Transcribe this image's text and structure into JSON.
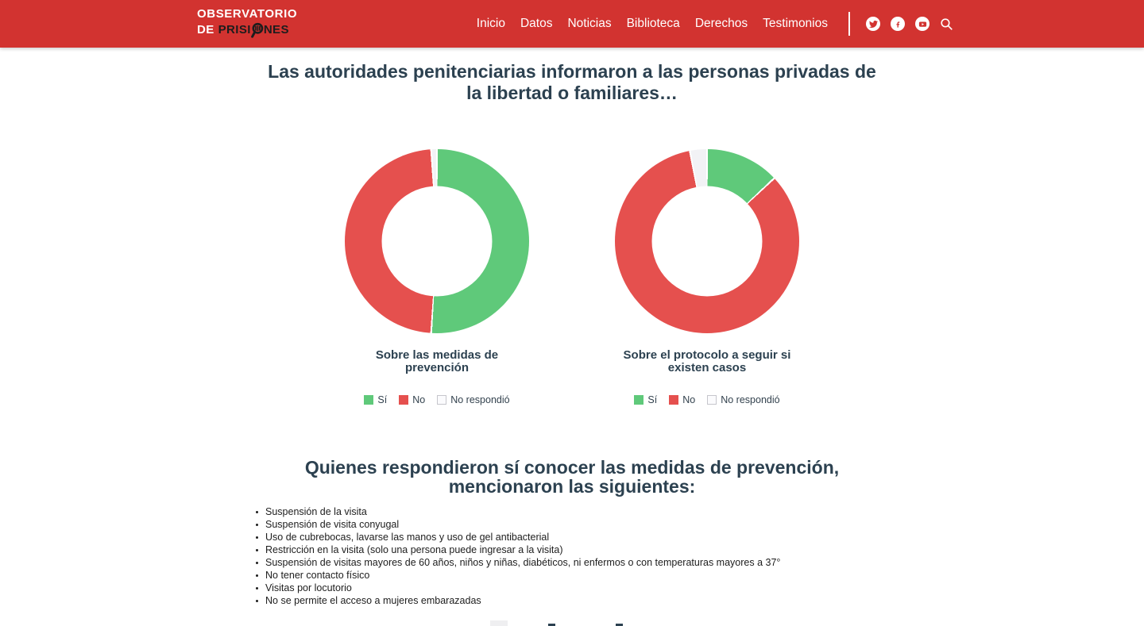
{
  "header": {
    "logo": {
      "line1": "OBSERVATORIO",
      "line2_white": "DE",
      "line2_dark_pre": "PRISI",
      "line2_dark_post": "NES",
      "magnifier_icon": "magnifier-with-prison-bars"
    },
    "nav": [
      "Inicio",
      "Datos",
      "Noticias",
      "Biblioteca",
      "Derechos",
      "Testimonios"
    ],
    "social_icons": [
      "twitter-icon",
      "facebook-icon",
      "youtube-icon",
      "search-icon"
    ]
  },
  "colors": {
    "header_red": "#d23330",
    "heading_slate": "#2c4150",
    "si_green": "#5fc97a",
    "no_red": "#e5504e",
    "no_respondio": "#f2f2f5",
    "body_text": "#1d1d1d"
  },
  "main": {
    "title": "Las autoridades penitenciarias informaron a las personas privadas de la libertad o familiares…",
    "section2_title": "Quienes respondieron sí conocer las medidas de prevención, mencionaron las siguientes:",
    "list": [
      "Suspensión de la visita",
      "Suspensión de visita conyugal",
      "Uso de cubrebocas, lavarse las manos y uso de gel antibacterial",
      "Restricción en la visita (solo una persona puede ingresar a la visita)",
      "Suspensión de visitas mayores de 60 años, niños y niñas, diabéticos, ni enfermos o con temperaturas mayores a 37°",
      "No tener contacto físico",
      "Visitas por locutorio",
      "No  se permite el acceso a mujeres embarazadas"
    ]
  },
  "chart_data": [
    {
      "type": "pie",
      "donut": true,
      "title": "Sobre las medidas de prevención",
      "labels": [
        "Sí",
        "No",
        "No respondió"
      ],
      "values": [
        51,
        48,
        1
      ],
      "colors": [
        "#5fc97a",
        "#e5504e",
        "#f2f2f5"
      ],
      "legend_position": "bottom",
      "start_angle_deg": 0,
      "direction": "clockwise"
    },
    {
      "type": "pie",
      "donut": true,
      "title": "Sobre el protocolo a seguir si existen casos",
      "labels": [
        "Sí",
        "No",
        "No respondió"
      ],
      "values": [
        13,
        84,
        3
      ],
      "colors": [
        "#5fc97a",
        "#e5504e",
        "#f2f2f5"
      ],
      "legend_position": "bottom",
      "start_angle_deg": 0,
      "direction": "clockwise"
    }
  ]
}
